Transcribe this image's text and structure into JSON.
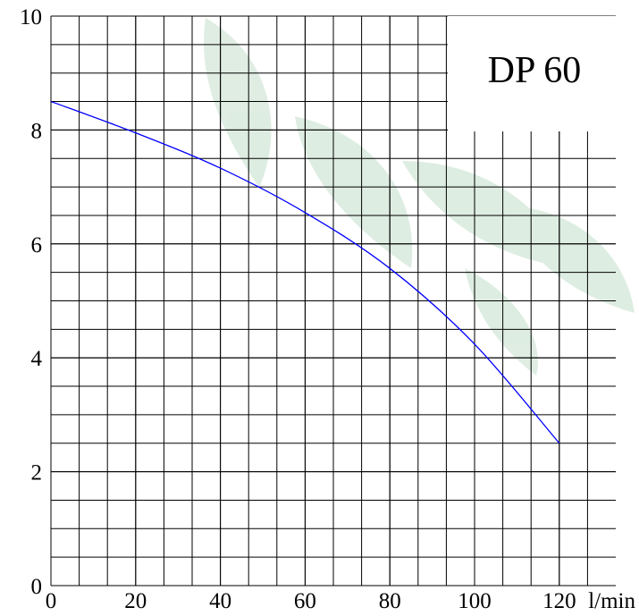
{
  "chart_data": {
    "type": "line",
    "title": "DP 60",
    "x_label": "l/min",
    "x": [
      0,
      20,
      40,
      60,
      80,
      100,
      120
    ],
    "series": [
      {
        "name": "DP 60",
        "color": "#0000ff",
        "values": [
          8.5,
          7.95,
          7.33,
          6.55,
          5.57,
          4.24,
          2.5
        ]
      }
    ],
    "xlim": [
      0,
      133.33
    ],
    "xticks": [
      0,
      20,
      40,
      60,
      80,
      100,
      120
    ],
    "ylim": [
      0,
      10
    ],
    "yticks": [
      0,
      2,
      4,
      6,
      8,
      10
    ],
    "grid": true,
    "grid_subdivisions": {
      "x": 3,
      "y": 4
    }
  }
}
